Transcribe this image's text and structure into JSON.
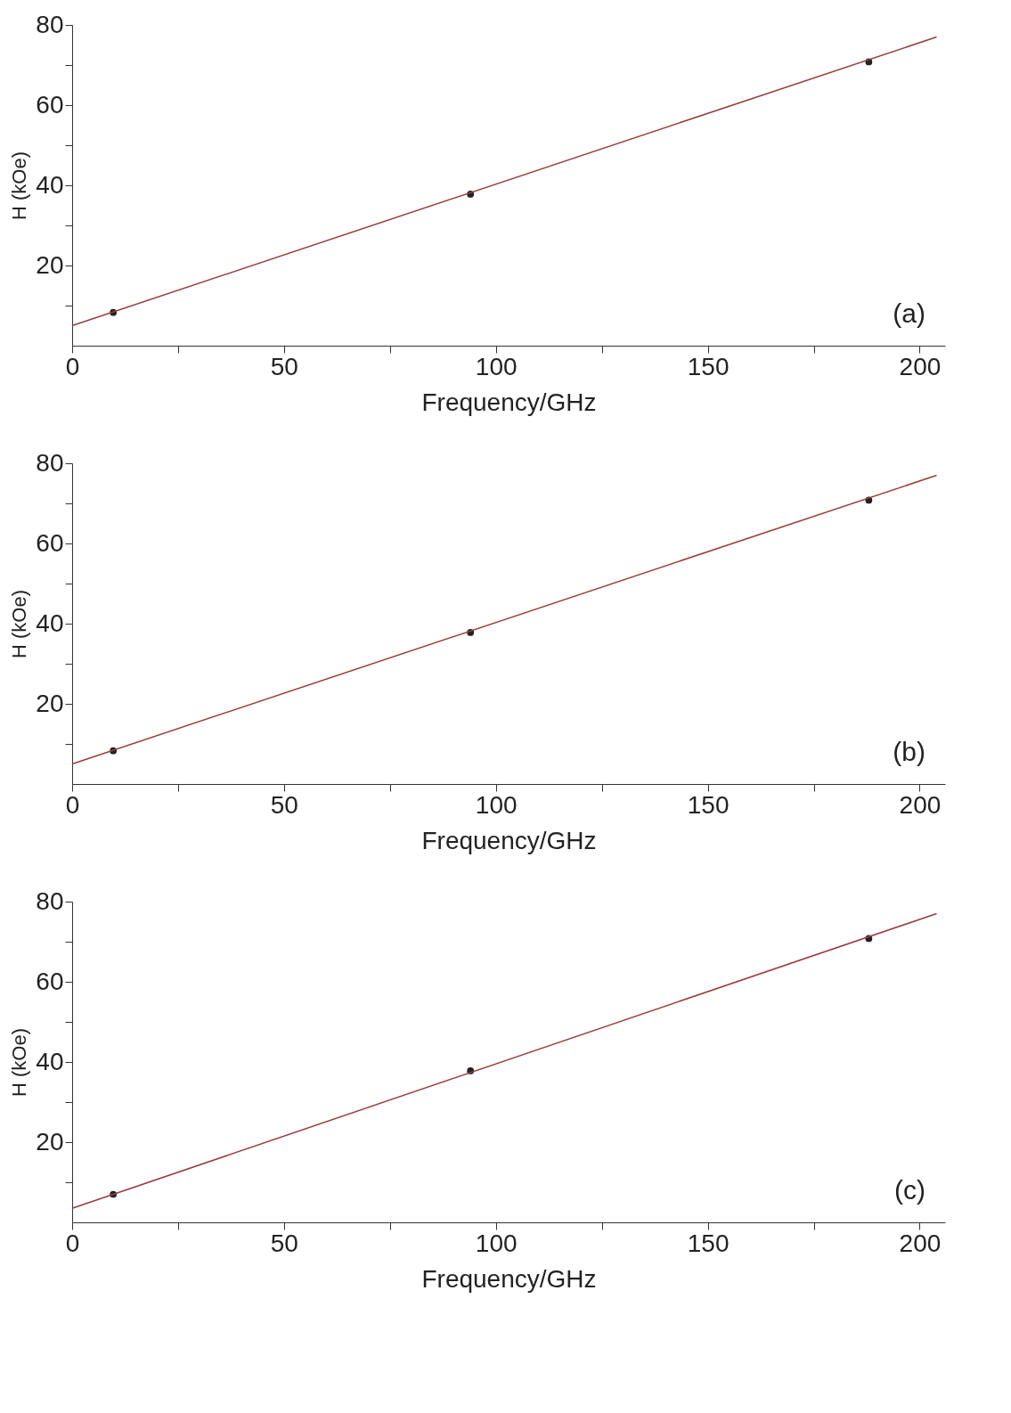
{
  "chart_data": [
    {
      "type": "scatter",
      "xlabel": "Frequency/GHz",
      "ylabel": "H (kOe)",
      "annotations": [
        "(a)"
      ],
      "xlim": [
        0,
        206
      ],
      "ylim": [
        0,
        80
      ],
      "xticks": [
        0,
        {
          "value": 25,
          "label": null
        },
        50,
        {
          "value": 75,
          "label": null
        },
        100,
        {
          "value": 125,
          "label": null
        },
        150,
        {
          "value": 175,
          "label": null
        },
        200
      ],
      "yticks": [
        {
          "value": 10,
          "label": null
        },
        20,
        {
          "value": 30,
          "label": null
        },
        40,
        {
          "value": 50,
          "label": null
        },
        60,
        {
          "value": 70,
          "label": null
        },
        80
      ],
      "series": [
        {
          "color": "#222222",
          "marker": "circle",
          "x": [
            9.7,
            94,
            188
          ],
          "values": [
            8.3,
            37.8,
            70.8
          ]
        },
        {
          "type": "line",
          "color": "#9b3b3b",
          "x": [
            0,
            204
          ],
          "values": [
            5,
            77
          ]
        }
      ]
    },
    {
      "type": "scatter",
      "xlabel": "Frequency/GHz",
      "ylabel": "H (kOe)",
      "annotations": [
        "(b)"
      ],
      "xlim": [
        0,
        206
      ],
      "ylim": [
        0,
        80
      ],
      "xticks": [
        0,
        {
          "value": 25,
          "label": null
        },
        50,
        {
          "value": 75,
          "label": null
        },
        100,
        {
          "value": 125,
          "label": null
        },
        150,
        {
          "value": 175,
          "label": null
        },
        200
      ],
      "yticks": [
        {
          "value": 10,
          "label": null
        },
        20,
        {
          "value": 30,
          "label": null
        },
        40,
        {
          "value": 50,
          "label": null
        },
        60,
        {
          "value": 70,
          "label": null
        },
        80
      ],
      "series": [
        {
          "color": "#222222",
          "marker": "circle",
          "x": [
            9.7,
            94,
            188
          ],
          "values": [
            8.3,
            37.8,
            70.8
          ]
        },
        {
          "type": "line",
          "color": "#9b3b3b",
          "x": [
            0,
            204
          ],
          "values": [
            5,
            77
          ]
        }
      ]
    },
    {
      "type": "scatter",
      "xlabel": "Frequency/GHz",
      "ylabel": "H (kOe)",
      "annotations": [
        "(c)"
      ],
      "xlim": [
        0,
        206
      ],
      "ylim": [
        0,
        80
      ],
      "xticks": [
        0,
        {
          "value": 25,
          "label": null
        },
        50,
        {
          "value": 75,
          "label": null
        },
        100,
        {
          "value": 125,
          "label": null
        },
        150,
        {
          "value": 175,
          "label": null
        },
        200
      ],
      "yticks": [
        {
          "value": 10,
          "label": null
        },
        20,
        {
          "value": 30,
          "label": null
        },
        40,
        {
          "value": 50,
          "label": null
        },
        60,
        {
          "value": 70,
          "label": null
        },
        80
      ],
      "series": [
        {
          "color": "#222222",
          "marker": "circle",
          "x": [
            9.7,
            94,
            188
          ],
          "values": [
            7,
            37.8,
            70.8
          ]
        },
        {
          "type": "line",
          "color": "#9b3b3b",
          "x": [
            0,
            204
          ],
          "values": [
            3.5,
            77
          ]
        }
      ]
    }
  ]
}
